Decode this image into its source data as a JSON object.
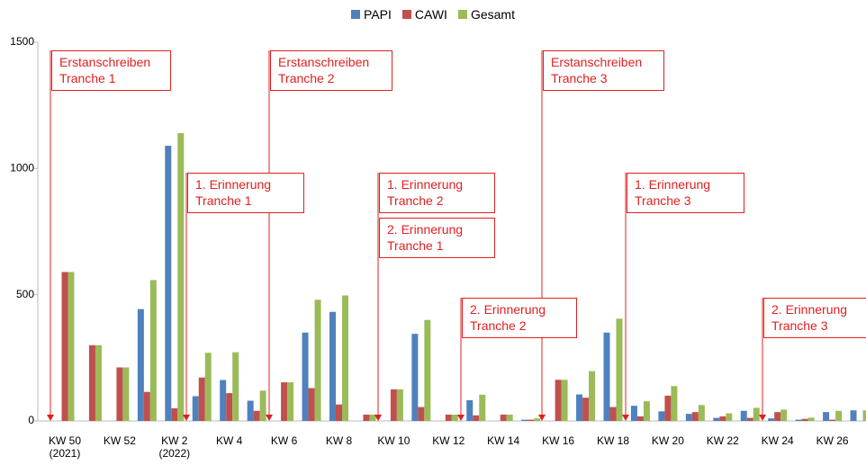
{
  "chart_data": {
    "type": "bar",
    "categories": [
      "KW 50 (2021)",
      null,
      "KW 52",
      null,
      "KW 2 (2022)",
      null,
      "KW 4",
      null,
      "KW 6",
      null,
      "KW 8",
      null,
      "KW 10",
      null,
      "KW 12",
      null,
      "KW 14",
      null,
      "KW 16",
      null,
      "KW 18",
      null,
      "KW 20",
      null,
      "KW 22",
      null,
      "KW 24",
      null,
      "KW 26",
      null
    ],
    "series": [
      {
        "name": "PAPI",
        "color": "#4f81bd",
        "values": [
          0,
          0,
          0,
          443,
          1090,
          98,
          162,
          80,
          0,
          350,
          432,
          0,
          0,
          345,
          0,
          82,
          0,
          5,
          0,
          105,
          350,
          60,
          38,
          28,
          12,
          40,
          10,
          5,
          35,
          42
        ]
      },
      {
        "name": "CAWI",
        "color": "#c0504d",
        "values": [
          590,
          300,
          212,
          115,
          50,
          172,
          110,
          40,
          153,
          130,
          65,
          25,
          125,
          55,
          25,
          22,
          25,
          5,
          163,
          92,
          55,
          18,
          100,
          35,
          18,
          12,
          35,
          8,
          5,
          0
        ]
      },
      {
        "name": "Gesamt",
        "color": "#9bbb59",
        "values": [
          590,
          300,
          212,
          558,
          1140,
          270,
          272,
          120,
          153,
          480,
          497,
          25,
          125,
          400,
          25,
          104,
          25,
          10,
          163,
          197,
          405,
          78,
          138,
          63,
          30,
          52,
          45,
          13,
          40,
          42
        ]
      }
    ],
    "ylim": [
      0,
      1500
    ],
    "yticks": [
      0,
      500,
      1000,
      1500
    ],
    "grid": false,
    "legend": "top",
    "annotation_color": "#e02020",
    "annotations": [
      "Erstanschreiben\nTranche 1",
      "Erstanschreiben\nTranche 2",
      "Erstanschreiben\nTranche 3",
      "1. Erinnerung\nTranche 1",
      "1. Erinnerung\nTranche 2",
      "2. Erinnerung\nTranche 1",
      "2. Erinnerung\nTranche 2",
      "1. Erinnerung\nTranche 3",
      "2. Erinnerung\nTranche 3"
    ]
  }
}
